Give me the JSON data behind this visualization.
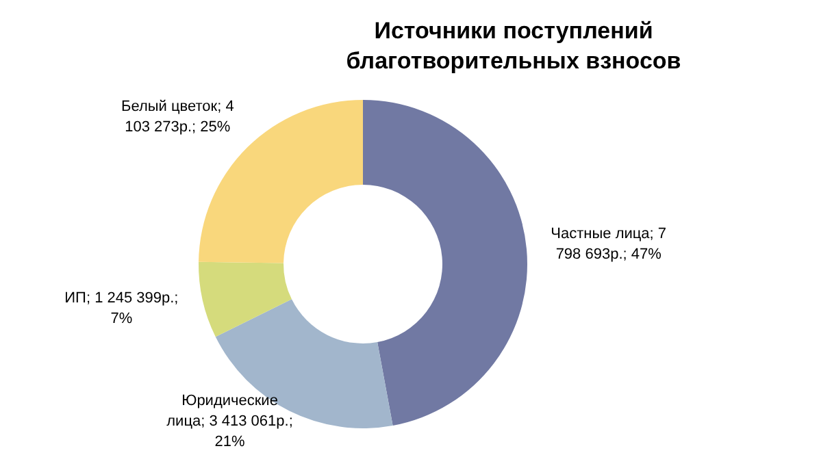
{
  "chart_data": {
    "type": "donut",
    "title": "Источники поступлений благотворительных взносов",
    "categories": [
      "Частные лица",
      "Юридические лица",
      "ИП",
      "Белый цветок"
    ],
    "values": [
      7798693,
      3413061,
      1245399,
      4103273
    ],
    "value_labels": [
      "7 798 693р.; 47%",
      "3 413 061р.; 21%",
      "1 245 399р.; 7%",
      "4 103 273р.; 25%"
    ],
    "colors": [
      "#7179a3",
      "#a2b6cc",
      "#d5db7c",
      "#f9d77c"
    ],
    "legend": false
  }
}
